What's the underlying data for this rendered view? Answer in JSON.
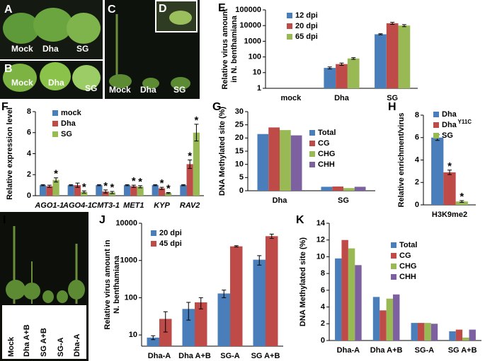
{
  "photo_panels": [
    {
      "label": "A",
      "captions": [
        "Mock",
        "Dha",
        "SG"
      ]
    },
    {
      "label": "B",
      "captions": [
        "Mock",
        "Dha",
        "SG"
      ]
    },
    {
      "label": "C",
      "captions": [
        "Mock",
        "Dha",
        "SG"
      ]
    },
    {
      "label": "D"
    },
    {
      "label": "I",
      "captions": [
        "Mock",
        "Dha A+B",
        "SG A+B",
        "SG-A",
        "Dha-A"
      ]
    }
  ],
  "chart_data": [
    {
      "type": "bar",
      "label": "E",
      "ylabel": [
        "Relative virus amount",
        "in N. benthamiana"
      ],
      "log": true,
      "categories": [
        "mock",
        "Dha",
        "SG"
      ],
      "ylim": [
        1,
        100000
      ],
      "yticks": [
        1,
        10,
        100,
        1000,
        10000,
        100000
      ],
      "series": [
        {
          "name": "12 dpi",
          "color": "#4a7ebb",
          "values": [
            null,
            20,
            2800
          ],
          "errors": [
            null,
            3,
            200
          ]
        },
        {
          "name": "20 dpi",
          "color": "#be4b48",
          "values": [
            null,
            35,
            14000
          ],
          "errors": [
            null,
            6,
            2000
          ]
        },
        {
          "name": "65 dpi",
          "color": "#98b954",
          "values": [
            null,
            80,
            10000
          ],
          "errors": [
            null,
            10,
            1500
          ]
        }
      ]
    },
    {
      "type": "bar",
      "label": "F",
      "ylabel": [
        "Relative expression level"
      ],
      "italic_categories": true,
      "categories": [
        "AGO1-1",
        "AGO4-1",
        "CMT3-1",
        "MET1",
        "KYP",
        "RAV2"
      ],
      "ylim": [
        0,
        8
      ],
      "yticks": [
        0,
        2,
        4,
        6,
        8
      ],
      "series": [
        {
          "name": "mock",
          "color": "#4a7ebb",
          "values": [
            1,
            1,
            1,
            1,
            1,
            1
          ],
          "errors": [
            0.05,
            0.05,
            0.05,
            0.05,
            0.05,
            0.05
          ]
        },
        {
          "name": "Dha",
          "color": "#be4b48",
          "values": [
            0.9,
            1.0,
            0.4,
            0.9,
            0.7,
            3.0
          ],
          "errors": [
            0.1,
            0.2,
            0.15,
            0.1,
            0.1,
            0.4
          ],
          "significance": [
            null,
            null,
            "*",
            "*",
            "*",
            "*"
          ]
        },
        {
          "name": "SG",
          "color": "#98b954",
          "values": [
            1.5,
            0.35,
            0.3,
            0.85,
            0.25,
            6.0
          ],
          "errors": [
            0.2,
            0.1,
            0.1,
            0.1,
            0.05,
            0.8
          ],
          "significance": [
            "*",
            "*",
            "*",
            "*",
            "*",
            "*"
          ]
        }
      ]
    },
    {
      "type": "bar",
      "label": "G",
      "ylabel": [
        "DNA Methylated site (%)"
      ],
      "categories": [
        "Dha",
        "SG"
      ],
      "ylim": [
        0,
        30
      ],
      "yticks": [
        0,
        5,
        10,
        15,
        20,
        25,
        30
      ],
      "series": [
        {
          "name": "Total",
          "color": "#4a7ebb",
          "values": [
            21.5,
            1.5
          ]
        },
        {
          "name": "CG",
          "color": "#be4b48",
          "values": [
            24,
            1.6
          ]
        },
        {
          "name": "CHG",
          "color": "#98b954",
          "values": [
            23,
            1.0
          ]
        },
        {
          "name": "CHH",
          "color": "#7d60a0",
          "values": [
            21,
            1.5
          ]
        }
      ]
    },
    {
      "type": "bar",
      "label": "H",
      "ylabel": [
        "Relative enrichment/virus"
      ],
      "categories": [
        "H3K9me2"
      ],
      "ylim": [
        0,
        8
      ],
      "yticks": [
        0,
        2,
        4,
        6,
        8
      ],
      "series": [
        {
          "name": "Dha",
          "color": "#4a7ebb",
          "values": [
            6.0
          ],
          "errors": [
            0.25
          ]
        },
        {
          "name": "Dha",
          "superscript": "Y11C",
          "color": "#be4b48",
          "values": [
            2.9
          ],
          "errors": [
            0.2
          ],
          "significance": [
            "*"
          ]
        },
        {
          "name": "SG",
          "color": "#98b954",
          "values": [
            0.3
          ],
          "errors": [
            0.08
          ],
          "significance": [
            "*"
          ]
        }
      ]
    },
    {
      "type": "bar",
      "label": "J",
      "ylabel": [
        "Relative virus amount in",
        "N. benthamiana"
      ],
      "log": true,
      "categories": [
        "Dha-A",
        "Dha A+B",
        "SG-A",
        "SG A+B"
      ],
      "ylim": [
        5,
        10000
      ],
      "yticks": [
        10,
        100,
        1000,
        10000
      ],
      "series": [
        {
          "name": "20 dpi",
          "color": "#4a7ebb",
          "values": [
            8.5,
            50,
            130,
            1050
          ],
          "errors": [
            1,
            25,
            30,
            300
          ]
        },
        {
          "name": "45 dpi",
          "color": "#be4b48",
          "values": [
            27,
            75,
            2400,
            4500
          ],
          "errors": [
            15,
            25,
            100,
            600
          ]
        }
      ]
    },
    {
      "type": "bar",
      "label": "K",
      "ylabel": [
        "DNA Methylated site (%)"
      ],
      "categories": [
        "Dha-A",
        "Dha A+B",
        "SG-A",
        "SG A+B"
      ],
      "ylim": [
        0,
        14
      ],
      "yticks": [
        0,
        2,
        4,
        6,
        8,
        10,
        12,
        14
      ],
      "series": [
        {
          "name": "Total",
          "color": "#4a7ebb",
          "values": [
            9.8,
            5.2,
            2.1,
            1.1
          ]
        },
        {
          "name": "CG",
          "color": "#be4b48",
          "values": [
            12,
            3.6,
            2.1,
            1.3
          ]
        },
        {
          "name": "CHG",
          "color": "#98b954",
          "values": [
            11,
            5.0,
            2.1,
            0.35
          ]
        },
        {
          "name": "CHH",
          "color": "#7d60a0",
          "values": [
            9.0,
            5.5,
            2.0,
            1.3
          ]
        }
      ]
    }
  ]
}
